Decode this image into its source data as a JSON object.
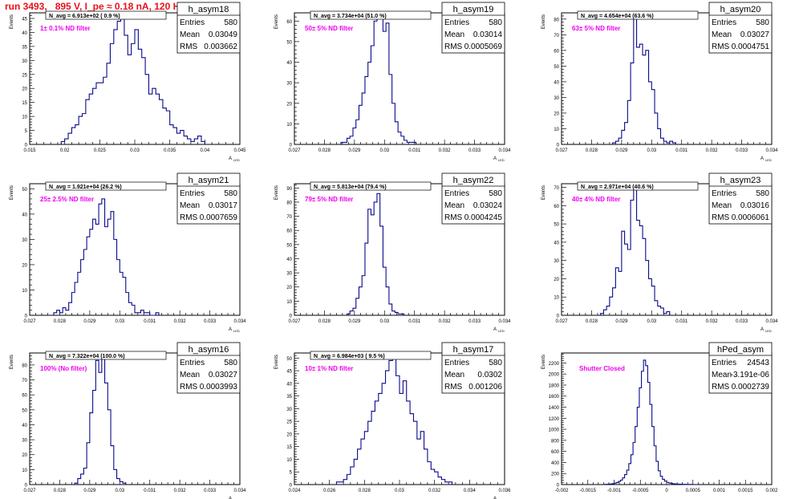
{
  "run_title": "run 3493,   895 V, I_pe ≈ 0.18 nA, 120 Hz",
  "colors": {
    "title": "#e8101c",
    "histogram": "#0a0a8c",
    "filter_label": "#ee00ee",
    "axis": "#000000"
  },
  "chart_data": [
    {
      "type": "histogram",
      "ylabel": "Events",
      "xlabel": "A",
      "xlabel_sub": "LED",
      "stats": {
        "name": "h_asym18",
        "rows": [
          [
            "Entries",
            "580"
          ],
          [
            "Mean",
            "0.03049"
          ],
          [
            "RMS",
            "0.003662"
          ]
        ]
      },
      "navg": "N_avg = 6.913e+02 ( 0.9 %)",
      "filter": "1± 0.1% ND filter",
      "x_ticks": [
        "0.015",
        "0.02",
        "0.025",
        "0.03",
        "0.035",
        "0.04",
        "0.045"
      ],
      "y_ticks": [
        "0",
        "5",
        "10",
        "15",
        "20",
        "25",
        "30",
        "35",
        "40",
        "45"
      ],
      "xlim": [
        0.015,
        0.045
      ],
      "ylim": [
        0,
        47
      ],
      "bin_start": 0.0195,
      "bin_width": 0.0005,
      "values": [
        1,
        2,
        4,
        6,
        7,
        10,
        11,
        16,
        18,
        20,
        22,
        22,
        24,
        29,
        36,
        41,
        44,
        45,
        39,
        32,
        36,
        41,
        34,
        31,
        25,
        18,
        20,
        18,
        16,
        13,
        12,
        7,
        6,
        4,
        5,
        3,
        2,
        1,
        2,
        3,
        1
      ]
    },
    {
      "type": "histogram",
      "ylabel": "Events",
      "xlabel": "A",
      "xlabel_sub": "LED",
      "stats": {
        "name": "h_asym19",
        "rows": [
          [
            "Entries",
            "580"
          ],
          [
            "Mean",
            "0.03014"
          ],
          [
            "RMS",
            "0.0005069"
          ]
        ]
      },
      "navg": "N_avg = 3.734e+04 (51.0 %)",
      "filter": "50± 5% ND filter",
      "x_ticks": [
        "0.027",
        "0.028",
        "0.029",
        "0.03",
        "0.031",
        "0.032",
        "0.033",
        "0.034"
      ],
      "y_ticks": [
        "0",
        "10",
        "20",
        "30",
        "40",
        "50",
        "60"
      ],
      "xlim": [
        0.027,
        0.034
      ],
      "ylim": [
        0,
        64
      ],
      "bin_start": 0.02855,
      "bin_width": 0.0001,
      "values": [
        1,
        1,
        3,
        4,
        8,
        12,
        19,
        25,
        33,
        40,
        48,
        60,
        63,
        62,
        55,
        59,
        34,
        20,
        11,
        6,
        4,
        2,
        1,
        1,
        1
      ]
    },
    {
      "type": "histogram",
      "ylabel": "Events",
      "xlabel": "A",
      "xlabel_sub": "LED",
      "stats": {
        "name": "h_asym20",
        "rows": [
          [
            "Entries",
            "580"
          ],
          [
            "Mean",
            "0.03027"
          ],
          [
            "RMS",
            "0.0004751"
          ]
        ]
      },
      "navg": "N_avg = 4.654e+04 (63.6 %)",
      "filter": "63± 5% ND filter",
      "x_ticks": [
        "0.027",
        "0.028",
        "0.029",
        "0.03",
        "0.031",
        "0.032",
        "0.033",
        "0.034"
      ],
      "y_ticks": [
        "0",
        "10",
        "20",
        "30",
        "40",
        "50",
        "60",
        "70",
        "80"
      ],
      "xlim": [
        0.027,
        0.034
      ],
      "ylim": [
        0,
        84
      ],
      "bin_start": 0.0287,
      "bin_width": 0.0001,
      "values": [
        1,
        2,
        4,
        9,
        14,
        28,
        52,
        83,
        62,
        64,
        57,
        60,
        40,
        35,
        20,
        10,
        4,
        2,
        1,
        2,
        1
      ]
    },
    {
      "type": "histogram",
      "ylabel": "Events",
      "xlabel": "A",
      "xlabel_sub": "LED",
      "stats": {
        "name": "h_asym21",
        "rows": [
          [
            "Entries",
            "580"
          ],
          [
            "Mean",
            "0.03017"
          ],
          [
            "RMS",
            "0.0007659"
          ]
        ]
      },
      "navg": "N_avg = 1.921e+04 (26.2 %)",
      "filter": "25± 2.5% ND filter",
      "x_ticks": [
        "0.027",
        "0.028",
        "0.029",
        "0.03",
        "0.031",
        "0.032",
        "0.033",
        "0.034"
      ],
      "y_ticks": [
        "0",
        "10",
        "20",
        "30",
        "40",
        "50"
      ],
      "xlim": [
        0.027,
        0.034
      ],
      "ylim": [
        0,
        52
      ],
      "bin_start": 0.0278,
      "bin_width": 0.0001,
      "values": [
        1,
        2,
        1,
        3,
        2,
        5,
        9,
        13,
        17,
        22,
        26,
        31,
        34,
        38,
        36,
        44,
        46,
        35,
        38,
        41,
        30,
        22,
        17,
        15,
        9,
        5,
        4,
        1,
        1,
        2,
        1,
        1,
        0,
        0,
        1
      ]
    },
    {
      "type": "histogram",
      "ylabel": "Events",
      "xlabel": "A",
      "xlabel_sub": "LED",
      "stats": {
        "name": "h_asym22",
        "rows": [
          [
            "Entries",
            "580"
          ],
          [
            "Mean",
            "0.03024"
          ],
          [
            "RMS",
            "0.0004245"
          ]
        ]
      },
      "navg": "N_avg = 5.813e+04 (79.4 %)",
      "filter": "79± 5% ND filter",
      "x_ticks": [
        "0.027",
        "0.028",
        "0.029",
        "0.03",
        "0.031",
        "0.032",
        "0.033",
        "0.034"
      ],
      "y_ticks": [
        "0",
        "10",
        "20",
        "30",
        "40",
        "50",
        "60",
        "70",
        "80",
        "90"
      ],
      "xlim": [
        0.027,
        0.034
      ],
      "ylim": [
        0,
        93
      ],
      "bin_start": 0.02875,
      "bin_width": 0.0001,
      "values": [
        1,
        3,
        5,
        12,
        20,
        28,
        51,
        75,
        71,
        80,
        86,
        63,
        34,
        20,
        8,
        3,
        2,
        1,
        1
      ]
    },
    {
      "type": "histogram",
      "ylabel": "Events",
      "xlabel": "A",
      "xlabel_sub": "LED",
      "stats": {
        "name": "h_asym23",
        "rows": [
          [
            "Entries",
            "580"
          ],
          [
            "Mean",
            "0.03016"
          ],
          [
            "RMS",
            "0.0006061"
          ]
        ]
      },
      "navg": "N_avg = 2.971e+04 (40.6 %)",
      "filter": "40± 4% ND filter",
      "x_ticks": [
        "0.027",
        "0.028",
        "0.029",
        "0.03",
        "0.031",
        "0.032",
        "0.033",
        "0.034"
      ],
      "y_ticks": [
        "0",
        "10",
        "20",
        "30",
        "40",
        "50",
        "60",
        "70"
      ],
      "xlim": [
        0.027,
        0.034
      ],
      "ylim": [
        0,
        72
      ],
      "bin_start": 0.0283,
      "bin_width": 0.0001,
      "values": [
        1,
        3,
        5,
        10,
        15,
        26,
        24,
        46,
        39,
        36,
        63,
        71,
        52,
        49,
        42,
        30,
        20,
        16,
        8,
        5,
        4,
        1,
        2
      ]
    },
    {
      "type": "histogram",
      "ylabel": "Events",
      "xlabel": "A",
      "xlabel_sub": "LED",
      "stats": {
        "name": "h_asym16",
        "rows": [
          [
            "Entries",
            "580"
          ],
          [
            "Mean",
            "0.03027"
          ],
          [
            "RMS",
            "0.0003993"
          ]
        ]
      },
      "navg": "N_avg = 7.322e+04 (100.0 %)",
      "filter": "100% (No filter)",
      "x_ticks": [
        "0.027",
        "0.028",
        "0.029",
        "0.03",
        "0.031",
        "0.032",
        "0.033",
        "0.034"
      ],
      "y_ticks": [
        "0",
        "10",
        "20",
        "30",
        "40",
        "50",
        "60",
        "70",
        "80"
      ],
      "xlim": [
        0.027,
        0.034
      ],
      "ylim": [
        0,
        88
      ],
      "bin_start": 0.0285,
      "bin_width": 0.0001,
      "values": [
        1,
        4,
        7,
        11,
        28,
        48,
        63,
        83,
        75,
        84,
        68,
        50,
        26,
        10,
        4,
        2,
        1
      ]
    },
    {
      "type": "histogram",
      "ylabel": "Events",
      "xlabel": "A",
      "xlabel_sub": "LED",
      "stats": {
        "name": "h_asym17",
        "rows": [
          [
            "Entries",
            "580"
          ],
          [
            "Mean",
            "0.0302"
          ],
          [
            "RMS",
            "0.001206"
          ]
        ]
      },
      "navg": "N_avg = 6.984e+03 ( 9.5 %)",
      "filter": "10± 1% ND filter",
      "x_ticks": [
        "0.024",
        "0.026",
        "0.028",
        "0.03",
        "0.032",
        "0.034",
        "0.036"
      ],
      "y_ticks": [
        "0",
        "5",
        "10",
        "15",
        "20",
        "25",
        "30",
        "35",
        "40",
        "45",
        "50"
      ],
      "xlim": [
        0.024,
        0.036
      ],
      "ylim": [
        0,
        52
      ],
      "bin_start": 0.0264,
      "bin_width": 0.0002,
      "values": [
        1,
        1,
        2,
        4,
        7,
        10,
        14,
        18,
        21,
        25,
        29,
        33,
        36,
        40,
        45,
        49,
        51,
        43,
        36,
        41,
        33,
        28,
        25,
        18,
        21,
        14,
        9,
        6,
        5,
        3,
        2,
        1,
        1
      ]
    },
    {
      "type": "histogram",
      "ylabel": "Events",
      "xlabel": "",
      "xlabel_sub": "",
      "stats": {
        "name": "hPed_asym",
        "rows": [
          [
            "Entries",
            "24543"
          ],
          [
            "Mean",
            "-3.191e-06"
          ],
          [
            "RMS",
            "0.0002739"
          ]
        ]
      },
      "navg": "",
      "filter": "Shutter Closed",
      "x_ticks": [
        "-0.002",
        "-0.0015",
        "-0.001",
        "-0.0005",
        "0",
        "0.0005",
        "0.001",
        "0.0015",
        "0.002"
      ],
      "y_ticks": [
        "0",
        "200",
        "400",
        "600",
        "800",
        "1000",
        "1200",
        "1400",
        "1600",
        "1800",
        "2000",
        "2200"
      ],
      "xlim": [
        -0.002,
        0.002
      ],
      "ylim": [
        0,
        2380
      ],
      "bin_start": -0.0012,
      "bin_width": 4e-05,
      "values": [
        2,
        4,
        6,
        10,
        16,
        24,
        36,
        55,
        80,
        120,
        180,
        260,
        380,
        540,
        760,
        1050,
        1400,
        1750,
        2050,
        2250,
        2150,
        1850,
        1450,
        1050,
        700,
        420,
        250,
        150,
        95,
        60,
        40,
        28,
        20,
        14,
        10,
        8,
        6,
        5,
        4,
        3,
        2,
        2,
        1
      ]
    }
  ]
}
